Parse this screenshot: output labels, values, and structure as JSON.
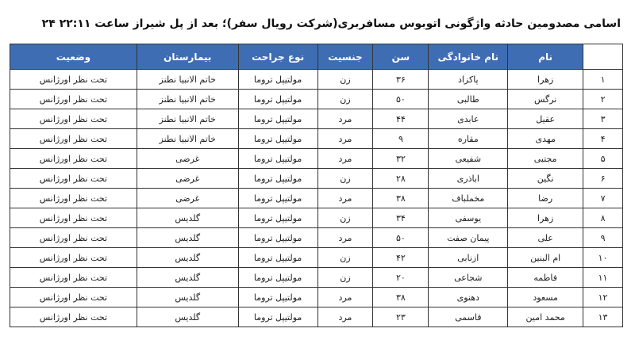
{
  "title": "اسامی مصدومین حادثه واژگونی اتوبوس مسافربری(شرکت رویال سفر)؛ بعد از پل شیراز ساعت ۲۲:۱۱ ۲۴",
  "table": {
    "header": [
      "نام",
      "نام خانوادگی",
      "سن",
      "جنسیت",
      "نوع جراحت",
      "بیمارستان",
      "وضعیت"
    ],
    "rows": [
      [
        "۱",
        "زهرا",
        "پاکزاد",
        "۳۶",
        "زن",
        "مولتیپل تروما",
        "خاتم الانبیا نطنز",
        "تحت نظر اورژانس"
      ],
      [
        "۲",
        "نرگس",
        "طالبی",
        "۵۰",
        "زن",
        "مولتیپل تروما",
        "خاتم الانبیا نطنز",
        "تحت نظر اورژانس"
      ],
      [
        "۳",
        "عقیل",
        "عابدی",
        "۴۴",
        "مرد",
        "مولتیپل تروما",
        "خاتم الانبیا نطنز",
        "تحت نظر اورژانس"
      ],
      [
        "۴",
        "مهدی",
        "مقاره",
        "۹",
        "مرد",
        "مولتیپل تروما",
        "خاتم الانبیا نطنز",
        "تحت نظر اورژانس"
      ],
      [
        "۵",
        "مجتبی",
        "شفیعی",
        "۳۲",
        "مرد",
        "مولتیپل تروما",
        "غرضی",
        "تحت نظر اورژانس"
      ],
      [
        "۶",
        "نگین",
        "اباذری",
        "۲۸",
        "زن",
        "مولتیپل تروما",
        "غرضی",
        "تحت نظر اورژانس"
      ],
      [
        "۷",
        "رضا",
        "مخملباف",
        "۳۸",
        "مرد",
        "مولتیپل تروما",
        "غرضی",
        "تحت نظر اورژانس"
      ],
      [
        "۸",
        "زهرا",
        "یوسفی",
        "۳۴",
        "زن",
        "مولتیپل تروما",
        "گلدیس",
        "تحت نظر اورژانس"
      ],
      [
        "۹",
        "علی",
        "پیمان صفت",
        "۵۰",
        "مرد",
        "مولتیپل تروما",
        "گلدیس",
        "تحت نظر اورژانس"
      ],
      [
        "۱۰",
        "ام البنین",
        "ازنابی",
        "۴۲",
        "زن",
        "مولتیپل تروما",
        "گلدیس",
        "تحت نظر اورژانس"
      ],
      [
        "۱۱",
        "فاطمه",
        "شجاعی",
        "۲۰",
        "زن",
        "مولتیپل تروما",
        "گلدیس",
        "تحت نظر اورژانس"
      ],
      [
        "۱۲",
        "مسعود",
        "دهنوی",
        "۳۸",
        "مرد",
        "مولتیپل تروما",
        "گلدیس",
        "تحت نظر اورژانس"
      ],
      [
        "۱۳",
        "محمد امین",
        "قاسمی",
        "۲۳",
        "مرد",
        "مولتیپل تروما",
        "گلدیس",
        "تحت نظر اورژانس"
      ]
    ]
  }
}
